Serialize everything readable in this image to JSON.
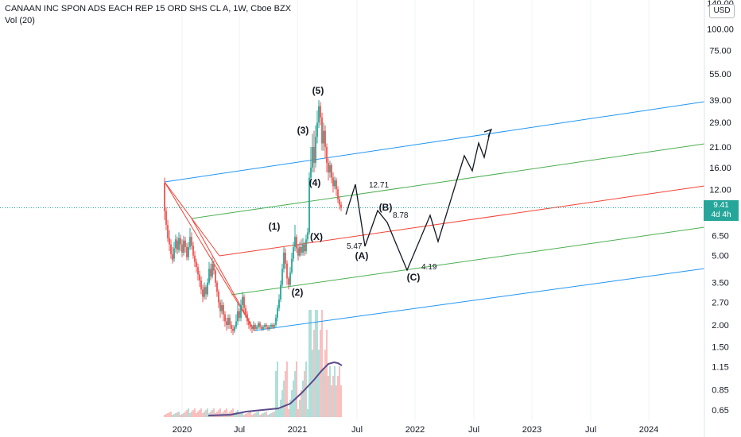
{
  "header": {
    "title": "CANAAN INC SPON ADS EACH REP 15 ORD SHS CL A, 1W, Cboe BZX",
    "volume_label": "Vol (20)"
  },
  "currency_button": "USD",
  "price_tag": {
    "price": "9.41",
    "countdown": "4d 4h"
  },
  "colors": {
    "up": "#26a69a",
    "down": "#ef5350",
    "fork_blue": "#2196f3",
    "fork_green": "#4caf50",
    "fork_red": "#f44336",
    "projection": "#131722",
    "volume_ma": "#5b4a8b"
  },
  "chart_data": {
    "type": "candlestick",
    "y_scale": "log",
    "y_ticks": [
      "140.00",
      "100.00",
      "75.00",
      "55.00",
      "39.00",
      "29.00",
      "21.00",
      "16.00",
      "12.00",
      "6.50",
      "5.00",
      "3.50",
      "2.70",
      "2.00",
      "1.50",
      "1.15",
      "0.85",
      "0.65"
    ],
    "x_ticks": [
      "2020",
      "Jul",
      "2021",
      "Jul",
      "2022",
      "Jul",
      "2023",
      "Jul",
      "2024"
    ],
    "wave_labels": [
      "(5)",
      "(3)",
      "(4)",
      "(1)",
      "(X)",
      "(2)",
      "(A)",
      "(B)",
      "(C)"
    ],
    "projection_values": [
      "12.71",
      "8.78",
      "5.47",
      "4.19"
    ],
    "last_price": 9.41
  }
}
